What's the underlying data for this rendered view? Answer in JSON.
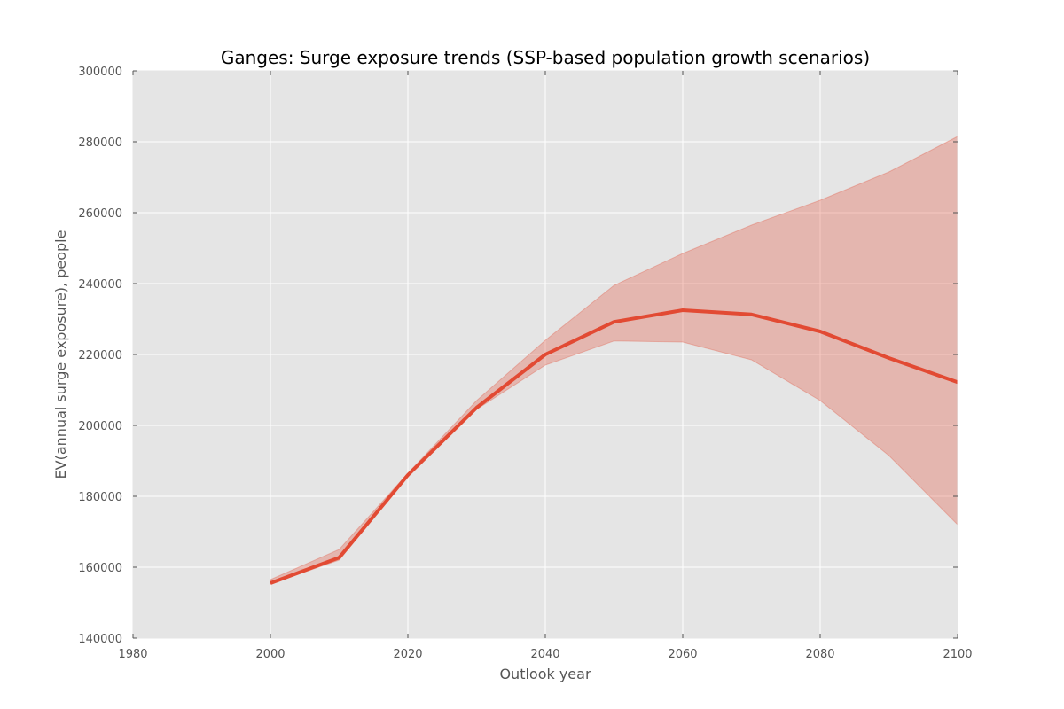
{
  "chart_data": {
    "type": "line",
    "title": "Ganges: Surge exposure trends (SSP-based population growth scenarios)",
    "xlabel": "Outlook year",
    "ylabel": "EV(annual surge exposure), people",
    "xlim": [
      1980,
      2100
    ],
    "ylim": [
      140000,
      300000
    ],
    "xticks": [
      1980,
      2000,
      2020,
      2040,
      2060,
      2080,
      2100
    ],
    "yticks": [
      140000,
      160000,
      180000,
      200000,
      220000,
      240000,
      260000,
      280000,
      300000
    ],
    "grid": true,
    "x": [
      2000,
      2010,
      2020,
      2030,
      2040,
      2050,
      2060,
      2070,
      2080,
      2090,
      2100
    ],
    "series": [
      {
        "values": [
          155500,
          162700,
          186000,
          205000,
          220000,
          229200,
          232500,
          231300,
          226500,
          219000,
          212200
        ],
        "band_low": [
          155300,
          162000,
          185500,
          204500,
          217000,
          223800,
          223500,
          218500,
          207000,
          191500,
          172000
        ],
        "band_high": [
          156500,
          165000,
          186500,
          207000,
          224000,
          239500,
          248500,
          256500,
          263500,
          271500,
          281500
        ],
        "color": "#E24A33",
        "band_color": "#E24A33"
      }
    ],
    "background_color": "#E5E5E5",
    "grid_color": "#FFFFFF"
  }
}
